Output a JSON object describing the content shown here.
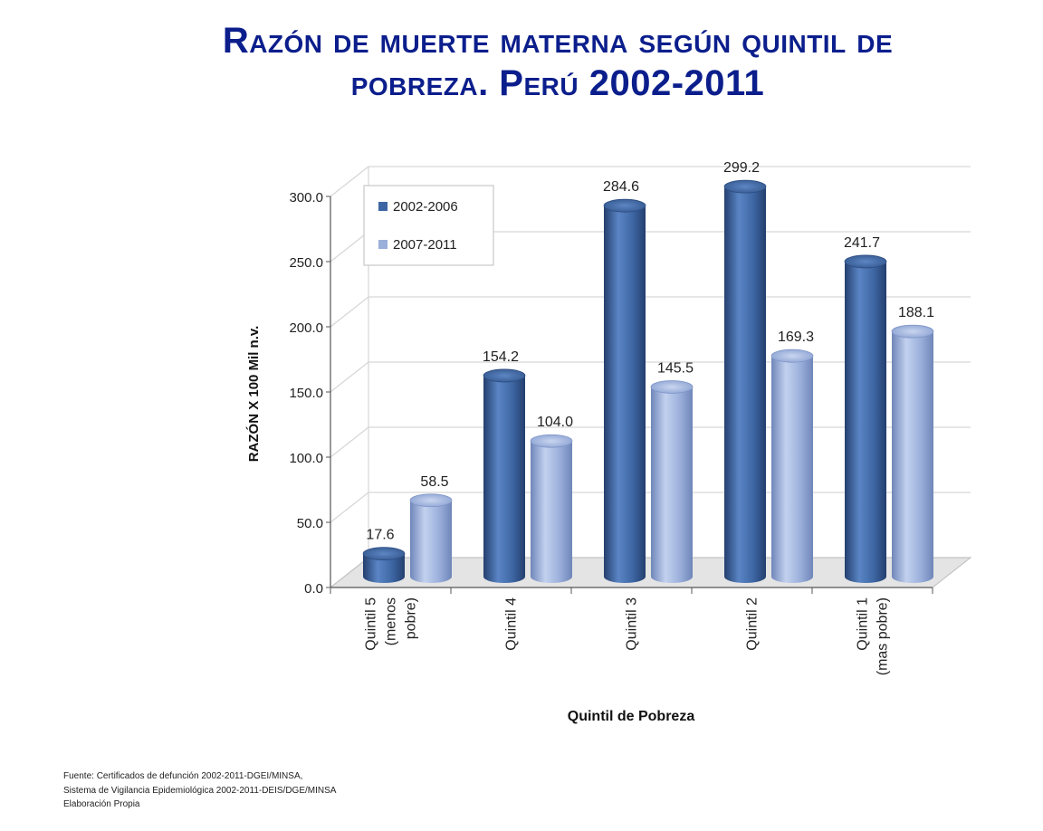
{
  "title_line1": "Razón de muerte materna según quintil de",
  "title_line2": "pobreza. Perú 2002-2011",
  "source_lines": [
    "Fuente: Certificados de defunción 2002-2011-DGEI/MINSA,",
    "Sistema de Vigilancia Epidemiológica 2002-2011-DEIS/DGE/MINSA",
    "Elaboración Propia"
  ],
  "chart_data": {
    "type": "bar",
    "categories": [
      [
        "Quintil 5",
        "(menos",
        "pobre)"
      ],
      [
        "Quintil 4"
      ],
      [
        "Quintil 3"
      ],
      [
        "Quintil 2"
      ],
      [
        "Quintil 1",
        "(mas pobre)"
      ]
    ],
    "series": [
      {
        "name": "2002-2006",
        "values": [
          17.6,
          154.2,
          284.6,
          299.2,
          241.7
        ],
        "color": "#3d66a3"
      },
      {
        "name": "2007-2011",
        "values": [
          58.5,
          104.0,
          145.5,
          169.3,
          188.1
        ],
        "color": "#9aafda"
      }
    ],
    "xlabel": "Quintil de Pobreza",
    "ylabel": "RAZÓN X 100 Mil n.v.",
    "ylim": [
      0,
      300
    ],
    "yticks": [
      "0.0",
      "50.0",
      "100.0",
      "150.0",
      "200.0",
      "250.0",
      "300.0"
    ],
    "grid": true,
    "legend_position": "top-left",
    "style": "3d-cylinder"
  }
}
